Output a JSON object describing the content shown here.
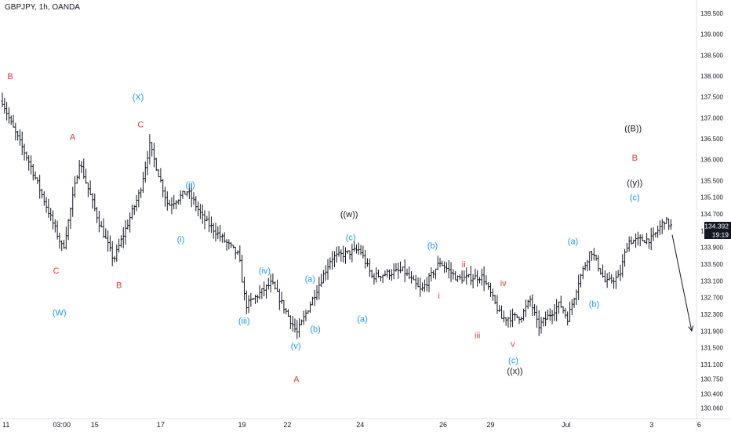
{
  "header": {
    "symbol_title": "GBPJPY, 1h, OANDA"
  },
  "price_tag": {
    "price": "134.392",
    "countdown": "19:19"
  },
  "colors": {
    "blue": "#2196f3",
    "red": "#e53935",
    "black": "#131722",
    "bar": "#131722"
  },
  "chart_data": {
    "type": "ohlc",
    "title": "GBPJPY, 1h, OANDA",
    "y_axis": {
      "position": "right",
      "ticks": [
        139.5,
        139.0,
        138.5,
        138.0,
        137.5,
        137.0,
        136.5,
        136.0,
        135.5,
        135.1,
        134.7,
        134.3,
        133.9,
        133.5,
        133.1,
        132.7,
        132.3,
        131.9,
        131.5,
        131.1,
        130.75,
        130.4,
        130.06
      ],
      "tick_labels": [
        "139.500",
        "139.000",
        "138.500",
        "138.000",
        "137.500",
        "137.000",
        "136.500",
        "136.000",
        "135.500",
        "135.100",
        "134.700",
        "134.300",
        "133.900",
        "133.500",
        "133.100",
        "132.700",
        "132.300",
        "131.900",
        "131.500",
        "131.100",
        "130.750",
        "130.400",
        "130.060"
      ]
    },
    "x_axis": {
      "ticks": [
        {
          "label": "11",
          "day": 0
        },
        {
          "label": "03:00",
          "day": 1.125
        },
        {
          "label": "15",
          "day": 1.75
        },
        {
          "label": "17",
          "day": 3.0
        },
        {
          "label": "19",
          "day": 4.54
        },
        {
          "label": "22",
          "day": 5.4
        },
        {
          "label": "24",
          "day": 6.78
        },
        {
          "label": "26",
          "day": 8.35
        },
        {
          "label": "29",
          "day": 9.25
        },
        {
          "label": "Jul",
          "day": 10.68
        },
        {
          "label": "3",
          "day": 12.3
        },
        {
          "label": "6",
          "day": 13.2
        }
      ]
    },
    "price_path": [
      {
        "day": 0.0,
        "price": 137.4
      },
      {
        "day": 0.17,
        "price": 136.85
      },
      {
        "day": 0.52,
        "price": 135.9
      },
      {
        "day": 0.83,
        "price": 134.9
      },
      {
        "day": 1.15,
        "price": 133.85
      },
      {
        "day": 1.46,
        "price": 135.95
      },
      {
        "day": 1.83,
        "price": 134.5
      },
      {
        "day": 2.11,
        "price": 133.6
      },
      {
        "day": 2.61,
        "price": 135.25
      },
      {
        "day": 2.79,
        "price": 136.35
      },
      {
        "day": 3.14,
        "price": 134.9
      },
      {
        "day": 3.51,
        "price": 135.25
      },
      {
        "day": 3.8,
        "price": 134.6
      },
      {
        "day": 4.48,
        "price": 133.7
      },
      {
        "day": 4.61,
        "price": 132.5
      },
      {
        "day": 5.1,
        "price": 133.05
      },
      {
        "day": 5.58,
        "price": 131.85
      },
      {
        "day": 6.23,
        "price": 133.65
      },
      {
        "day": 6.77,
        "price": 133.85
      },
      {
        "day": 7.0,
        "price": 133.2
      },
      {
        "day": 7.59,
        "price": 133.35
      },
      {
        "day": 7.93,
        "price": 132.85
      },
      {
        "day": 8.29,
        "price": 133.55
      },
      {
        "day": 8.62,
        "price": 133.15
      },
      {
        "day": 9.1,
        "price": 133.2
      },
      {
        "day": 9.46,
        "price": 132.2
      },
      {
        "day": 9.83,
        "price": 132.25
      },
      {
        "day": 10.0,
        "price": 132.65
      },
      {
        "day": 10.15,
        "price": 132.0
      },
      {
        "day": 10.56,
        "price": 132.55
      },
      {
        "day": 10.71,
        "price": 132.2
      },
      {
        "day": 10.92,
        "price": 133.1
      },
      {
        "day": 11.15,
        "price": 133.85
      },
      {
        "day": 11.43,
        "price": 133.05
      },
      {
        "day": 11.69,
        "price": 133.2
      },
      {
        "day": 11.85,
        "price": 134.05
      },
      {
        "day": 12.31,
        "price": 134.1
      },
      {
        "day": 12.54,
        "price": 134.55
      },
      {
        "day": 12.68,
        "price": 134.4
      }
    ],
    "forecast_arrow": {
      "from": {
        "day": 12.69,
        "price": 134.2
      },
      "to": {
        "day": 13.06,
        "price": 131.9
      }
    },
    "annotations": [
      {
        "text": "B",
        "color": "red",
        "day": 0.15,
        "price": 138.0
      },
      {
        "text": "(X)",
        "color": "blue",
        "day": 2.57,
        "price": 137.5
      },
      {
        "text": "C",
        "color": "red",
        "day": 2.62,
        "price": 136.85
      },
      {
        "text": "A",
        "color": "red",
        "day": 1.33,
        "price": 136.55
      },
      {
        "text": "(ii)",
        "color": "blue",
        "day": 3.56,
        "price": 135.4
      },
      {
        "text": "(i)",
        "color": "blue",
        "day": 3.38,
        "price": 134.1
      },
      {
        "text": "C",
        "color": "red",
        "day": 1.02,
        "price": 133.35
      },
      {
        "text": "B",
        "color": "red",
        "day": 2.21,
        "price": 133.0
      },
      {
        "text": "(iv)",
        "color": "blue",
        "day": 4.97,
        "price": 133.35
      },
      {
        "text": "(W)",
        "color": "blue",
        "day": 1.08,
        "price": 132.35
      },
      {
        "text": "(iii)",
        "color": "blue",
        "day": 4.58,
        "price": 132.15
      },
      {
        "text": "(a)",
        "color": "blue",
        "day": 5.83,
        "price": 133.15
      },
      {
        "text": "(b)",
        "color": "blue",
        "day": 5.93,
        "price": 131.95
      },
      {
        "text": "(v)",
        "color": "blue",
        "day": 5.56,
        "price": 131.55
      },
      {
        "text": "A",
        "color": "red",
        "day": 5.57,
        "price": 130.75
      },
      {
        "text": "((w))",
        "color": "black",
        "day": 6.57,
        "price": 134.7
      },
      {
        "text": "(c)",
        "color": "blue",
        "day": 6.6,
        "price": 134.15
      },
      {
        "text": "(a)",
        "color": "blue",
        "day": 6.82,
        "price": 132.2
      },
      {
        "text": "(b)",
        "color": "blue",
        "day": 8.15,
        "price": 133.95
      },
      {
        "text": "ii",
        "color": "red",
        "day": 8.74,
        "price": 133.5
      },
      {
        "text": "i",
        "color": "red",
        "day": 8.27,
        "price": 132.75
      },
      {
        "text": "iv",
        "color": "red",
        "day": 9.49,
        "price": 133.05
      },
      {
        "text": "iii",
        "color": "red",
        "day": 9.0,
        "price": 131.8
      },
      {
        "text": "v",
        "color": "red",
        "day": 9.67,
        "price": 131.6
      },
      {
        "text": "(c)",
        "color": "blue",
        "day": 9.68,
        "price": 131.2
      },
      {
        "text": "((x))",
        "color": "black",
        "day": 9.71,
        "price": 130.95
      },
      {
        "text": "(a)",
        "color": "blue",
        "day": 10.81,
        "price": 134.05
      },
      {
        "text": "(b)",
        "color": "blue",
        "day": 11.21,
        "price": 132.55
      },
      {
        "text": "((B))",
        "color": "black",
        "day": 11.95,
        "price": 136.75
      },
      {
        "text": "B",
        "color": "red",
        "day": 11.98,
        "price": 136.05
      },
      {
        "text": "((y))",
        "color": "black",
        "day": 11.98,
        "price": 135.45
      },
      {
        "text": "(c)",
        "color": "blue",
        "day": 11.98,
        "price": 135.1
      }
    ]
  }
}
